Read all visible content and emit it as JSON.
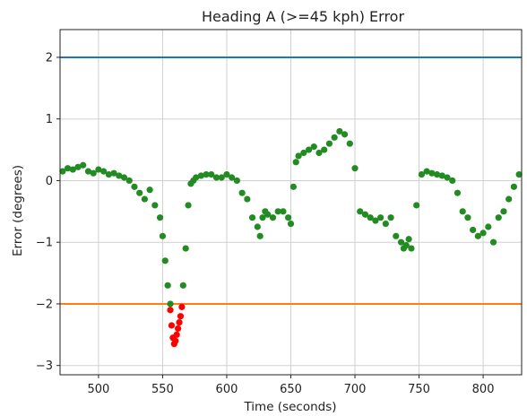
{
  "chart_data": {
    "type": "scatter",
    "title": "Heading A (>=45 kph) Error",
    "xlabel": "Time (seconds)",
    "ylabel": "Error (degrees)",
    "xlim": [
      470,
      830
    ],
    "ylim": [
      -3.15,
      2.45
    ],
    "xticks": [
      500,
      550,
      600,
      650,
      700,
      750,
      800
    ],
    "yticks": [
      2,
      1,
      0,
      -1,
      -2,
      -3
    ],
    "ytick_labels": [
      "2",
      "1",
      "0",
      "−1",
      "−2",
      "−3"
    ],
    "grid": true,
    "threshold_lines": [
      {
        "y": 2,
        "color": "#1f77b4"
      },
      {
        "y": -2,
        "color": "#ff7f0e"
      }
    ],
    "series": [
      {
        "color": "#228B22",
        "x": [
          472,
          476,
          480,
          484,
          488,
          492,
          496,
          500,
          504,
          508,
          512,
          516,
          520,
          524,
          528,
          532,
          536,
          540,
          544,
          548,
          550,
          552,
          554,
          556,
          566,
          568,
          570,
          572,
          574,
          576,
          580,
          584,
          588,
          592,
          596,
          600,
          604,
          608,
          612,
          616,
          620,
          624,
          626,
          628,
          630,
          632,
          636,
          640,
          644,
          648,
          650,
          652,
          654,
          656,
          660,
          664,
          668,
          672,
          676,
          680,
          684,
          688,
          692,
          696,
          700,
          704,
          708,
          712,
          716,
          720,
          724,
          728,
          732,
          736,
          738,
          740,
          742,
          744,
          748,
          752,
          756,
          760,
          764,
          768,
          772,
          776,
          780,
          784,
          788,
          792,
          796,
          800,
          804,
          808,
          812,
          816,
          820,
          824,
          828
        ],
        "y": [
          0.15,
          0.2,
          0.18,
          0.22,
          0.25,
          0.15,
          0.12,
          0.18,
          0.15,
          0.1,
          0.12,
          0.08,
          0.05,
          0.0,
          -0.1,
          -0.2,
          -0.3,
          -0.15,
          -0.4,
          -0.6,
          -0.9,
          -1.3,
          -1.7,
          -2.0,
          -1.7,
          -1.1,
          -0.4,
          -0.05,
          0.0,
          0.05,
          0.08,
          0.1,
          0.1,
          0.05,
          0.05,
          0.1,
          0.05,
          0.0,
          -0.2,
          -0.3,
          -0.6,
          -0.75,
          -0.9,
          -0.6,
          -0.5,
          -0.55,
          -0.6,
          -0.5,
          -0.5,
          -0.6,
          -0.7,
          -0.1,
          0.3,
          0.4,
          0.45,
          0.5,
          0.55,
          0.45,
          0.5,
          0.6,
          0.7,
          0.8,
          0.75,
          0.6,
          0.2,
          -0.5,
          -0.55,
          -0.6,
          -0.65,
          -0.6,
          -0.7,
          -0.6,
          -0.9,
          -1.0,
          -1.1,
          -1.05,
          -0.95,
          -1.1,
          -0.4,
          0.1,
          0.15,
          0.12,
          0.1,
          0.08,
          0.05,
          0.0,
          -0.2,
          -0.5,
          -0.6,
          -0.8,
          -0.9,
          -0.85,
          -0.75,
          -1.0,
          -0.6,
          -0.5,
          -0.3,
          -0.1,
          0.1
        ]
      },
      {
        "color": "#ff0000",
        "x": [
          556,
          557,
          558,
          559,
          560,
          561,
          562,
          563,
          564,
          565
        ],
        "y": [
          -2.1,
          -2.35,
          -2.55,
          -2.65,
          -2.6,
          -2.5,
          -2.4,
          -2.3,
          -2.2,
          -2.05
        ]
      }
    ]
  }
}
